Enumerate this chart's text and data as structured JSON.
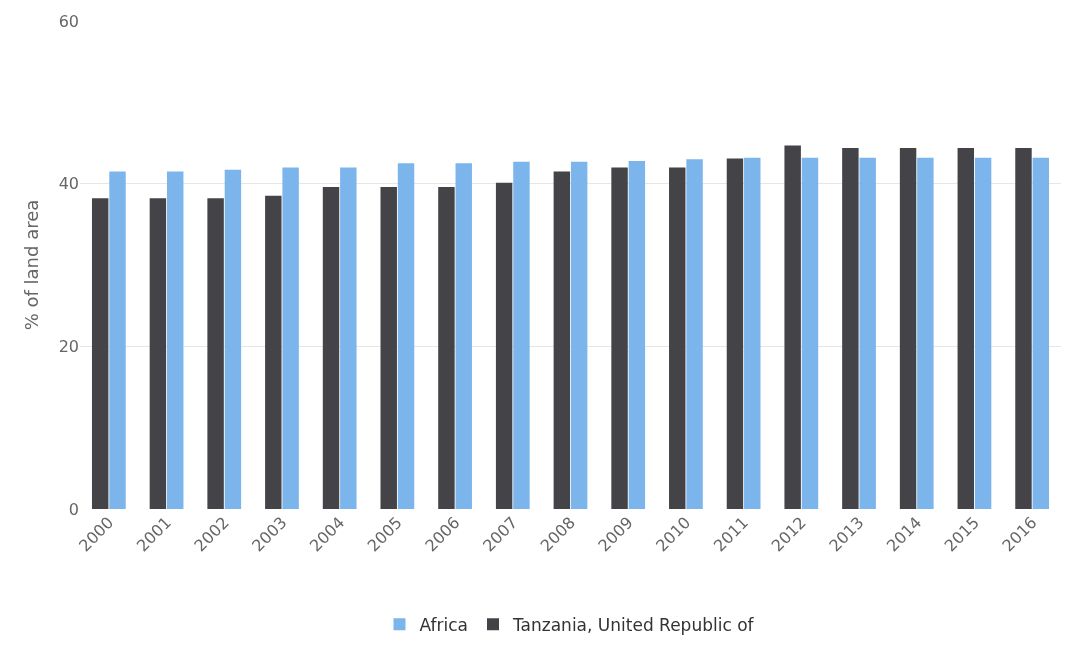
{
  "chart_data": {
    "type": "bar",
    "ylabel": "% of land area",
    "categories": [
      "2000",
      "2001",
      "2002",
      "2003",
      "2004",
      "2005",
      "2006",
      "2007",
      "2008",
      "2009",
      "2010",
      "2011",
      "2012",
      "2013",
      "2014",
      "2015",
      "2016"
    ],
    "series": [
      {
        "name": "Africa",
        "color": "#7cb5ec",
        "values": [
          41.5,
          41.5,
          41.7,
          42.0,
          42.0,
          42.5,
          42.5,
          42.7,
          42.7,
          42.8,
          43.0,
          43.2,
          43.2,
          43.2,
          43.2,
          43.2,
          43.2
        ]
      },
      {
        "name": "Tanzania, United Republic of",
        "color": "#434348",
        "values": [
          38.2,
          38.2,
          38.2,
          38.5,
          39.6,
          39.6,
          39.6,
          40.1,
          41.5,
          42.0,
          42.0,
          43.1,
          44.7,
          44.4,
          44.4,
          44.4,
          44.4
        ]
      }
    ],
    "ylim": [
      0,
      60
    ],
    "yticks": [
      0,
      20,
      40,
      60
    ],
    "grid": "y",
    "legend": "bottom"
  }
}
